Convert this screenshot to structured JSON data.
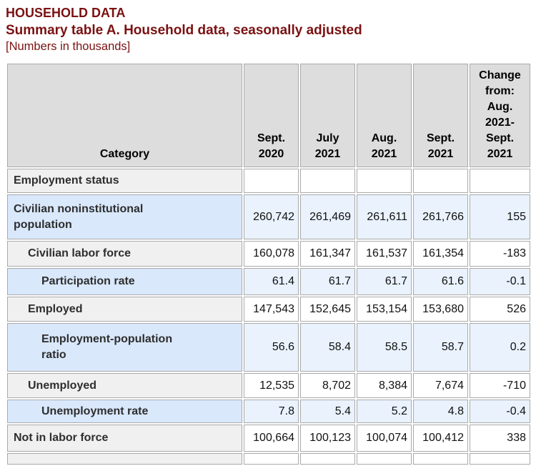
{
  "page": {
    "title": "HOUSEHOLD DATA",
    "subtitle": "Summary table A. Household data, seasonally adjusted",
    "note": "[Numbers in thousands]"
  },
  "colors": {
    "title_maroon": "#7b1112",
    "header_gray": "#dddddd",
    "stub_gray": "#f0f0f0",
    "stub_blue": "#d9e8fb",
    "cell_blue": "#e9f2fd",
    "border_gray": "#a9a9a9"
  },
  "table": {
    "columns": [
      "Category",
      "Sept.\n2020",
      "July\n2021",
      "Aug.\n2021",
      "Sept.\n2021",
      "Change\nfrom:\nAug.\n2021-\nSept.\n2021"
    ],
    "rows": [
      {
        "label": "Employment status",
        "indent": 0,
        "scheme": "gray-white",
        "values": [
          "",
          "",
          "",
          "",
          ""
        ]
      },
      {
        "label": "Civilian noninstitutional\npopulation",
        "indent": 0,
        "scheme": "blue",
        "values": [
          "260,742",
          "261,469",
          "261,611",
          "261,766",
          "155"
        ]
      },
      {
        "label": "Civilian labor force",
        "indent": 1,
        "scheme": "gray-white",
        "values": [
          "160,078",
          "161,347",
          "161,537",
          "161,354",
          "-183"
        ]
      },
      {
        "label": "Participation rate",
        "indent": 2,
        "scheme": "blue",
        "values": [
          "61.4",
          "61.7",
          "61.7",
          "61.6",
          "-0.1"
        ]
      },
      {
        "label": "Employed",
        "indent": 1,
        "scheme": "gray-white",
        "values": [
          "147,543",
          "152,645",
          "153,154",
          "153,680",
          "526"
        ]
      },
      {
        "label": "Employment-population\nratio",
        "indent": 2,
        "scheme": "blue",
        "values": [
          "56.6",
          "58.4",
          "58.5",
          "58.7",
          "0.2"
        ]
      },
      {
        "label": "Unemployed",
        "indent": 1,
        "scheme": "gray-white",
        "values": [
          "12,535",
          "8,702",
          "8,384",
          "7,674",
          "-710"
        ]
      },
      {
        "label": "Unemployment rate",
        "indent": 2,
        "scheme": "blue",
        "values": [
          "7.8",
          "5.4",
          "5.2",
          "4.8",
          "-0.4"
        ]
      },
      {
        "label": "Not in labor force",
        "indent": 0,
        "scheme": "gray-white",
        "values": [
          "100,664",
          "100,123",
          "100,074",
          "100,412",
          "338"
        ]
      }
    ]
  }
}
